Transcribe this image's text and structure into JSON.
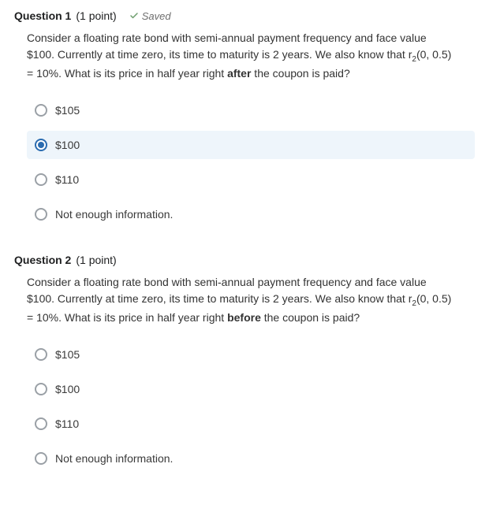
{
  "questions": [
    {
      "title": "Question 1",
      "points": "(1 point)",
      "saved": true,
      "saved_label": "Saved",
      "body_html": "Consider a floating rate bond with semi-annual payment frequency and face value $100. Currently at time zero, its time to maturity is 2 years. We also know that r<span class=\"sub\">2</span>(0, 0.5) = 10%.  What is its price in half year right <b>after</b> the coupon is paid?",
      "options": [
        {
          "label": "$105",
          "selected": false
        },
        {
          "label": "$100",
          "selected": true
        },
        {
          "label": "$110",
          "selected": false
        },
        {
          "label": "Not enough information.",
          "selected": false
        }
      ]
    },
    {
      "title": "Question 2",
      "points": "(1 point)",
      "saved": false,
      "saved_label": "",
      "body_html": "Consider a floating rate bond with semi-annual payment frequency and face value $100. Currently at time zero, its time to maturity is 2 years. We also know that r<span class=\"sub\">2</span>(0, 0.5) = 10%.  What is its price in half year right <b>before</b> the coupon is paid?",
      "options": [
        {
          "label": "$105",
          "selected": false
        },
        {
          "label": "$100",
          "selected": false
        },
        {
          "label": "$110",
          "selected": false
        },
        {
          "label": "Not enough information.",
          "selected": false
        }
      ]
    }
  ],
  "colors": {
    "selected_bg": "#eef5fb",
    "radio_border": "#9aa0a6",
    "radio_selected": "#2b6cb0",
    "check_color": "#6e9e6e"
  }
}
